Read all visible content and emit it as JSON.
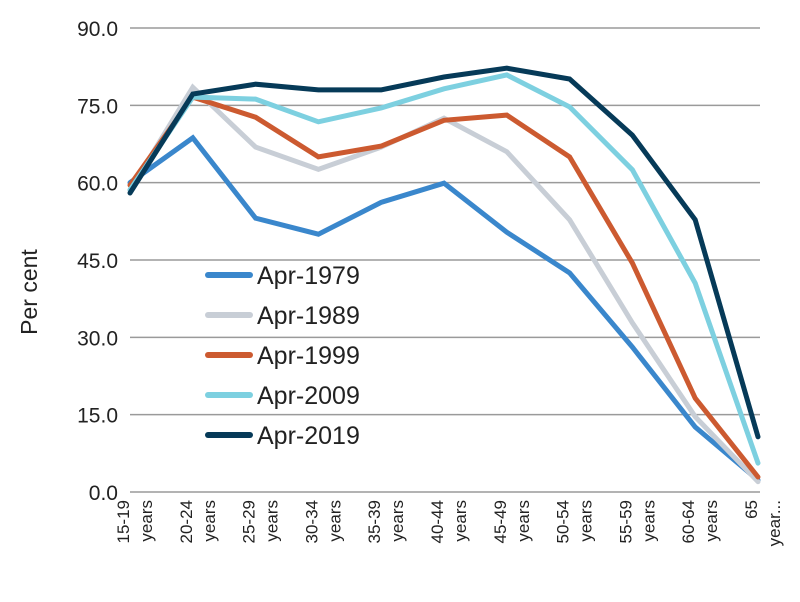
{
  "chart_data": {
    "type": "line",
    "title": "",
    "xlabel": "",
    "ylabel": "Per cent",
    "ylim": [
      0,
      90
    ],
    "yticks": [
      "0.0",
      "15.0",
      "30.0",
      "45.0",
      "60.0",
      "75.0",
      "90.0"
    ],
    "grid": true,
    "legend_position": "center-left",
    "categories": [
      [
        "15-19",
        "years"
      ],
      [
        "20-24",
        "years"
      ],
      [
        "25-29",
        "years"
      ],
      [
        "30-34",
        "years"
      ],
      [
        "35-39",
        "years"
      ],
      [
        "40-44",
        "years"
      ],
      [
        "45-49",
        "years"
      ],
      [
        "50-54",
        "years"
      ],
      [
        "55-59",
        "years"
      ],
      [
        "60-64",
        "years"
      ],
      [
        "65",
        "year..."
      ]
    ],
    "series": [
      {
        "name": "Apr-1979",
        "color": "#3a87cc",
        "values": [
          60.0,
          68.7,
          53.1,
          50.0,
          56.2,
          59.9,
          50.4,
          42.5,
          28.1,
          12.6,
          2.3
        ]
      },
      {
        "name": "Apr-1989",
        "color": "#c8ced6",
        "values": [
          58.6,
          78.5,
          66.9,
          62.6,
          66.9,
          72.5,
          66.0,
          52.8,
          32.8,
          14.6,
          2.0
        ]
      },
      {
        "name": "Apr-1999",
        "color": "#cc5a30",
        "values": [
          59.5,
          76.6,
          72.7,
          65.0,
          67.1,
          72.1,
          73.1,
          65.0,
          44.4,
          18.2,
          2.9
        ]
      },
      {
        "name": "Apr-2009",
        "color": "#7dd0e0",
        "values": [
          58.6,
          76.6,
          76.2,
          71.8,
          74.5,
          78.2,
          80.9,
          74.7,
          62.5,
          40.5,
          5.6
        ]
      },
      {
        "name": "Apr-2019",
        "color": "#063a58",
        "values": [
          58.0,
          77.2,
          79.1,
          78.0,
          78.0,
          80.5,
          82.2,
          80.1,
          69.2,
          52.8,
          10.7
        ]
      }
    ]
  }
}
